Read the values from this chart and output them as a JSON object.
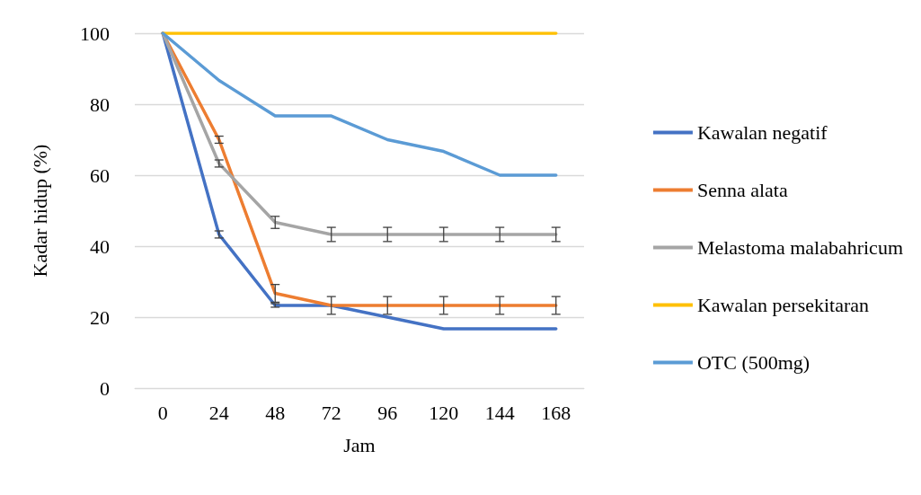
{
  "chart_data": {
    "type": "line",
    "xlabel": "Jam",
    "ylabel": "Kadar hidup (%)",
    "categories": [
      "0",
      "24",
      "48",
      "72",
      "96",
      "120",
      "144",
      "168"
    ],
    "series": [
      {
        "name": "Kawalan negatif",
        "color": "#4472c4",
        "values": [
          100,
          43.3,
          23.3,
          23.3,
          20,
          16.7,
          16.7,
          16.7
        ],
        "errors": [
          null,
          1,
          0.5,
          null,
          null,
          null,
          null,
          null
        ]
      },
      {
        "name": "Senna alata",
        "color": "#ed7d31",
        "values": [
          100,
          70,
          26.7,
          23.3,
          23.3,
          23.3,
          23.3,
          23.3
        ],
        "errors": [
          null,
          1,
          2.5,
          2.5,
          2.5,
          2.5,
          2.5,
          2.5
        ]
      },
      {
        "name": "Melastoma malabahricum",
        "color": "#a5a5a5",
        "values": [
          100,
          63.3,
          46.7,
          43.3,
          43.3,
          43.3,
          43.3,
          43.3
        ],
        "errors": [
          null,
          1,
          1.7,
          2,
          2,
          2,
          2,
          2
        ]
      },
      {
        "name": "Kawalan persekitaran",
        "color": "#ffc000",
        "values": [
          100,
          100,
          100,
          100,
          100,
          100,
          100,
          100
        ]
      },
      {
        "name": "OTC (500mg)",
        "color": "#5b9bd5",
        "values": [
          100,
          86.7,
          76.7,
          76.7,
          70,
          66.7,
          60,
          60
        ]
      }
    ],
    "ylim": [
      0,
      100
    ],
    "yticks": [
      0,
      20,
      40,
      60,
      80,
      100
    ],
    "grid": "y",
    "legend": "right",
    "marker": "none",
    "line_style": "solid"
  }
}
